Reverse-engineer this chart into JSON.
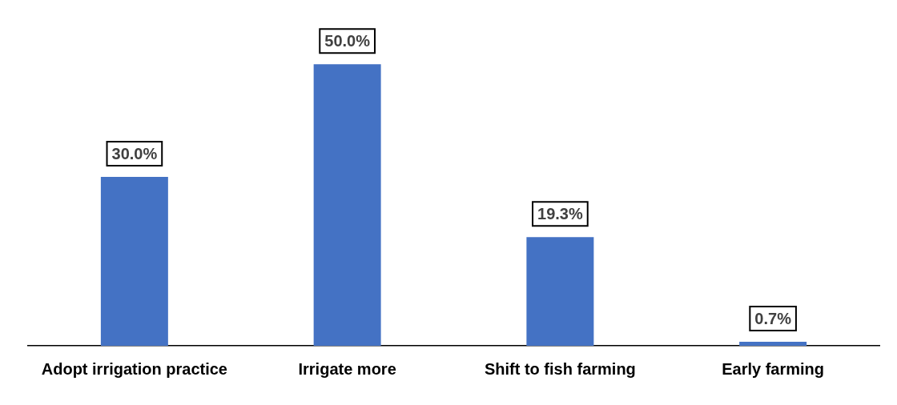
{
  "chart_data": {
    "type": "bar",
    "categories": [
      "Adopt irrigation practice",
      "Irrigate more",
      "Shift to fish farming",
      "Early farming"
    ],
    "values": [
      30.0,
      50.0,
      19.3,
      0.7
    ],
    "value_labels": [
      "30.0%",
      "50.0%",
      "19.3%",
      "0.7%"
    ],
    "color": "#4472c4",
    "grid": false,
    "legend": false,
    "tick_labels": "x"
  }
}
